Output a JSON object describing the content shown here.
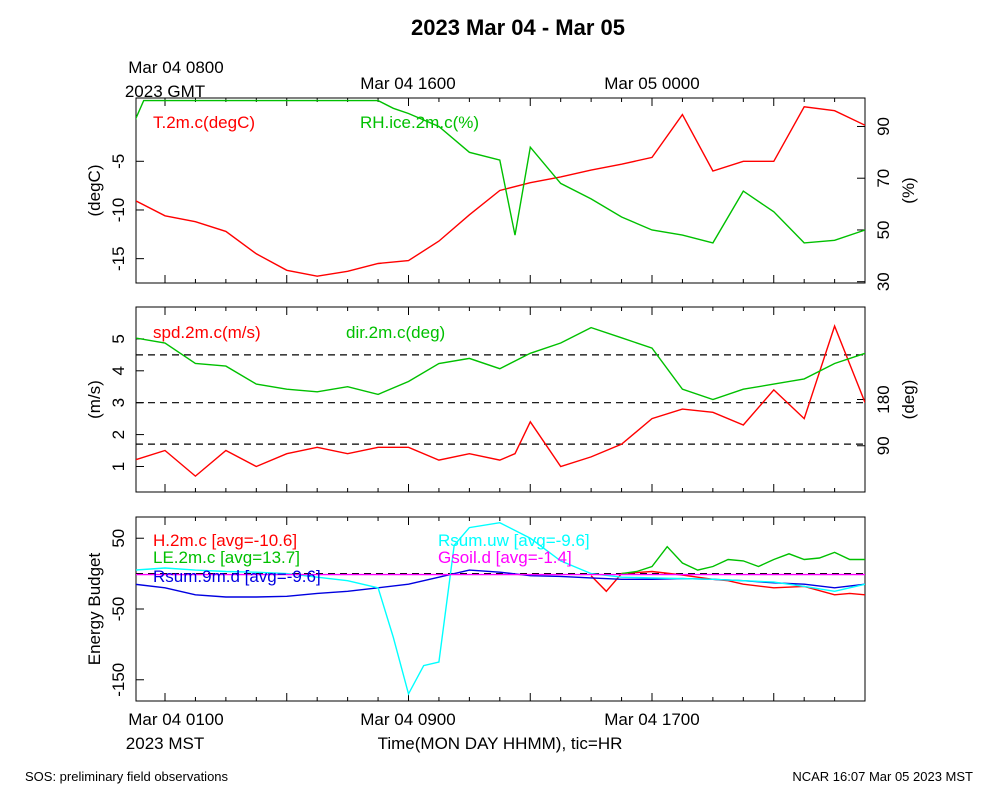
{
  "title": "2023 Mar 04 - Mar 05",
  "top_axis": {
    "labels": [
      {
        "line1": "Mar 04 0800",
        "line2": "2023 GMT"
      },
      {
        "line1": "Mar 04 1600",
        "line2": ""
      },
      {
        "line1": "Mar 05 0000",
        "line2": ""
      }
    ]
  },
  "bottom_axis": {
    "labels": [
      {
        "line1": "Mar 04 0100",
        "line2": "2023 MST"
      },
      {
        "line1": "Mar 04 0900",
        "line2": ""
      },
      {
        "line1": "Mar 04 1700",
        "line2": ""
      }
    ],
    "xlabel": "Time(MON DAY HHMM), tic=HR"
  },
  "footer": {
    "left": "SOS: preliminary field observations",
    "right": "NCAR 16:07 Mar 05 2023 MST"
  },
  "colors": {
    "red": "#ff0000",
    "green": "#00c000",
    "blue": "#0000e0",
    "cyan": "#00ffff",
    "magenta": "#ff00ff"
  },
  "chart_data": [
    {
      "type": "line",
      "x_unit": "hours since Mar 04 0100 MST",
      "xlim": [
        -1,
        23
      ],
      "left_axis": {
        "label": "(degC)",
        "ticks": [
          -5,
          -10,
          -15
        ],
        "range": [
          -17.5,
          1.5
        ]
      },
      "right_axis": {
        "label": "(%)",
        "ticks": [
          90,
          70,
          50,
          30
        ],
        "range": [
          29.5,
          101
        ]
      },
      "series": [
        {
          "name": "T.2m.c(degC)",
          "axis": "left",
          "color": "#ff0000",
          "x": [
            -1,
            0,
            1,
            2,
            3,
            4,
            5,
            6,
            7,
            8,
            9,
            10,
            11,
            12,
            13,
            14,
            15,
            16,
            17,
            18,
            19,
            20,
            21,
            22,
            23
          ],
          "y": [
            -9,
            -10.6,
            -11.2,
            -12.2,
            -14.5,
            -16.2,
            -16.8,
            -16.3,
            -15.5,
            -15.2,
            -13.2,
            -10.5,
            -8,
            -7.2,
            -6.6,
            -5.9,
            -5.3,
            -4.6,
            -0.2,
            -6,
            -5,
            -5,
            0.6,
            0.2,
            -1.3
          ]
        },
        {
          "name": "RH.ice.2m.c(%)",
          "axis": "right",
          "color": "#00c000",
          "x": [
            -1,
            -0.7,
            0,
            1,
            2,
            3,
            4,
            5,
            6,
            7,
            7.5,
            8,
            9,
            10,
            11,
            11.5,
            12,
            13,
            14,
            15,
            16,
            17,
            18,
            19,
            20,
            21,
            22,
            23
          ],
          "y": [
            92,
            100,
            100,
            100,
            100,
            100,
            100,
            100,
            100,
            100,
            97,
            95,
            90,
            80,
            77,
            48,
            82,
            68,
            62,
            55,
            50,
            48,
            45,
            65,
            57,
            45,
            46,
            50
          ]
        }
      ]
    },
    {
      "type": "line",
      "x_unit": "hours since Mar 04 0100 MST",
      "xlim": [
        -1,
        23
      ],
      "left_axis": {
        "label": "(m/s)",
        "ticks": [
          1,
          2,
          3,
          4,
          5
        ],
        "range": [
          0.2,
          6.0
        ]
      },
      "right_axis": {
        "label": "(deg)",
        "ticks": [
          90,
          180
        ],
        "range": [
          0,
          360
        ]
      },
      "reference_lines": [
        1.7,
        3.0,
        4.5
      ],
      "series": [
        {
          "name": "spd.2m.c(m/s)",
          "axis": "left",
          "color": "#ff0000",
          "x": [
            -1,
            0,
            1,
            2,
            3,
            4,
            5,
            6,
            7,
            8,
            9,
            10,
            11,
            11.5,
            12,
            13,
            14,
            15,
            16,
            17,
            18,
            19,
            20,
            21,
            22,
            23
          ],
          "y": [
            1.2,
            1.5,
            0.7,
            1.5,
            1.0,
            1.4,
            1.6,
            1.4,
            1.6,
            1.6,
            1.2,
            1.4,
            1.2,
            1.4,
            2.4,
            1.0,
            1.3,
            1.7,
            2.5,
            2.8,
            2.7,
            2.3,
            3.4,
            2.5,
            5.4,
            3.0
          ]
        },
        {
          "name": "dir.2m.c(deg)",
          "axis": "right",
          "color": "#00c000",
          "x": [
            -1,
            0,
            1,
            2,
            3,
            4,
            5,
            6,
            7,
            8,
            9,
            10,
            11,
            12,
            13,
            14,
            15,
            16,
            17,
            18,
            19,
            20,
            21,
            22,
            23
          ],
          "y": [
            300,
            290,
            250,
            245,
            210,
            200,
            195,
            205,
            190,
            215,
            250,
            260,
            240,
            270,
            290,
            320,
            300,
            280,
            200,
            180,
            200,
            210,
            220,
            250,
            270
          ]
        }
      ]
    },
    {
      "type": "line",
      "x_unit": "hours since Mar 04 0100 MST",
      "xlim": [
        -1,
        23
      ],
      "left_axis": {
        "label": "Energy Budget",
        "ticks": [
          50,
          -50,
          -150
        ],
        "range": [
          -180,
          80
        ]
      },
      "reference_lines": [
        0
      ],
      "series": [
        {
          "name": "H.2m.c [avg=-10.6]",
          "color": "#ff0000",
          "x": [
            14,
            14.5,
            15,
            16,
            17,
            17.5,
            18,
            18.5,
            19,
            20,
            21,
            22,
            22.5,
            23
          ],
          "y": [
            -3,
            -25,
            0,
            3,
            -2,
            -5,
            -8,
            -10,
            -15,
            -20,
            -18,
            -30,
            -28,
            -30
          ]
        },
        {
          "name": "LE.2m.c [avg=13.7]",
          "color": "#00c000",
          "x": [
            15,
            15.5,
            16,
            16.5,
            17,
            17.5,
            18,
            18.5,
            19,
            19.5,
            20,
            20.5,
            21,
            21.5,
            22,
            22.5,
            23
          ],
          "y": [
            0,
            3,
            10,
            38,
            15,
            5,
            10,
            20,
            18,
            10,
            20,
            28,
            20,
            22,
            30,
            20,
            20
          ]
        },
        {
          "name": "Rsum.9m.d [avg=-9.6]",
          "color": "#0000e0",
          "x": [
            -1,
            0,
            1,
            2,
            3,
            4,
            5,
            6,
            7,
            8,
            9,
            10,
            11,
            12,
            13,
            14,
            15,
            16,
            17,
            18,
            19,
            20,
            21,
            22,
            23
          ],
          "y": [
            -15,
            -20,
            -30,
            -33,
            -33,
            -32,
            -28,
            -25,
            -20,
            -15,
            -5,
            5,
            2,
            -3,
            -4,
            -6,
            -8,
            -8,
            -7,
            -8,
            -10,
            -13,
            -15,
            -20,
            -15
          ]
        },
        {
          "name": "Rsum.uw [avg=-9.6]",
          "color": "#00ffff",
          "x": [
            -1,
            0,
            1,
            2,
            3,
            4,
            5,
            6,
            7,
            7.5,
            8,
            8.5,
            9,
            9.5,
            10,
            11,
            12,
            13,
            14,
            15,
            16,
            17,
            18,
            19,
            20,
            21,
            22,
            23
          ],
          "y": [
            5,
            8,
            5,
            3,
            2,
            0,
            -5,
            -10,
            -20,
            -90,
            -170,
            -130,
            -125,
            40,
            65,
            72,
            50,
            18,
            0,
            -5,
            -6,
            -7,
            -8,
            -10,
            -12,
            -18,
            -25,
            -15
          ]
        },
        {
          "name": "Gsoil.d [avg=-1.4]",
          "color": "#ff00ff",
          "x": [
            -1,
            23
          ],
          "y": [
            -1.4,
            -1.4
          ]
        }
      ]
    }
  ]
}
